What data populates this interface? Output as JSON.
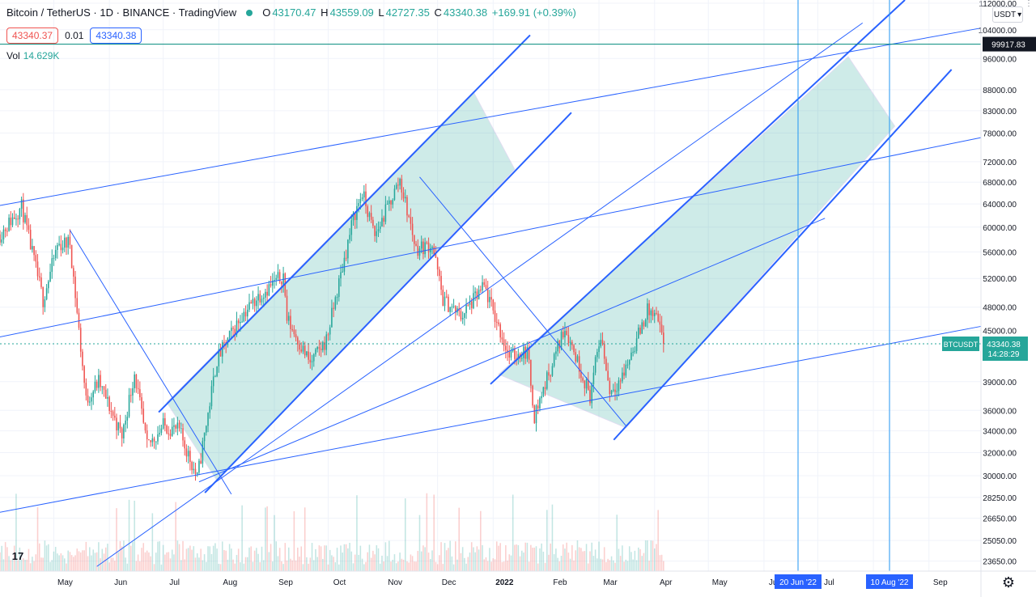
{
  "header": {
    "symbol": "Bitcoin / TetherUS · 1D · BINANCE · TradingView",
    "ohlc": [
      {
        "k": "O",
        "v": "43170.47"
      },
      {
        "k": "H",
        "v": "43559.09"
      },
      {
        "k": "L",
        "v": "42727.35"
      },
      {
        "k": "C",
        "v": "43340.38"
      }
    ],
    "change": "+169.91 (+0.39%)",
    "sell_price": "43340.37",
    "spread": "0.01",
    "buy_price": "43340.38",
    "vol_label": "Vol",
    "vol_value": "14.629K",
    "currency": "USDT",
    "tv_logo": "17"
  },
  "colors": {
    "up": "#26a69a",
    "down": "#ef5350",
    "lines": "#2962ff",
    "channel_fill": "#26a69a",
    "crosshair": "#00897b"
  },
  "icons": [
    "trading-view-logo",
    "settings-gear-icon",
    "more-dots-icon",
    "dropdown-chevron-icon"
  ],
  "chart_data": {
    "type": "candlestick",
    "title": "Bitcoin / TetherUS · 1D · BINANCE",
    "log_scale": true,
    "ylim": [
      23000,
      113000
    ],
    "yticks": [
      "112000.00",
      "104000.00",
      "96000.00",
      "88000.00",
      "83000.00",
      "78000.00",
      "72000.00",
      "68000.00",
      "64000.00",
      "60000.00",
      "56000.00",
      "52000.00",
      "48000.00",
      "45000.00",
      "39000.00",
      "36000.00",
      "34000.00",
      "32000.00",
      "30000.00",
      "28250.00",
      "26650.00",
      "25050.00",
      "23650.00"
    ],
    "xticks": [
      "May",
      "Jun",
      "Jul",
      "Aug",
      "Sep",
      "Oct",
      "Nov",
      "Dec",
      "2022",
      "Feb",
      "Mar",
      "Apr",
      "May",
      "Jun",
      "Jul",
      "Aug",
      "Sep"
    ],
    "x_start": "2021-04-01",
    "x_end": "2022-09-30",
    "last_price": 43340.38,
    "price_label": "43340.38",
    "price_countdown": "14:28:29",
    "symbol_tag": "BTCUSDT",
    "crosshair_price": 99917.83,
    "crosshair_label": "99917.83",
    "vertical_markers": [
      {
        "date": "2022-06-20",
        "label": "20 Jun '22"
      },
      {
        "date": "2022-08-10",
        "label": "10 Aug '22"
      }
    ],
    "price_path": [
      [
        "2021-04-01",
        58800
      ],
      [
        "2021-04-13",
        63500
      ],
      [
        "2021-04-25",
        49000
      ],
      [
        "2021-05-03",
        57000
      ],
      [
        "2021-05-10",
        57500
      ],
      [
        "2021-05-19",
        37000
      ],
      [
        "2021-05-26",
        39000
      ],
      [
        "2021-06-08",
        33500
      ],
      [
        "2021-06-15",
        40000
      ],
      [
        "2021-06-22",
        32500
      ],
      [
        "2021-07-01",
        34500
      ],
      [
        "2021-07-10",
        34000
      ],
      [
        "2021-07-20",
        29800
      ],
      [
        "2021-07-31",
        41500
      ],
      [
        "2021-08-14",
        47000
      ],
      [
        "2021-08-23",
        49500
      ],
      [
        "2021-09-06",
        52500
      ],
      [
        "2021-09-08",
        46500
      ],
      [
        "2021-09-21",
        41000
      ],
      [
        "2021-09-30",
        43800
      ],
      [
        "2021-10-15",
        61500
      ],
      [
        "2021-10-20",
        66000
      ],
      [
        "2021-10-27",
        58500
      ],
      [
        "2021-11-10",
        68500
      ],
      [
        "2021-11-19",
        56500
      ],
      [
        "2021-11-28",
        57200
      ],
      [
        "2021-12-04",
        49000
      ],
      [
        "2021-12-14",
        46800
      ],
      [
        "2021-12-27",
        50800
      ],
      [
        "2022-01-10",
        41800
      ],
      [
        "2022-01-20",
        42500
      ],
      [
        "2022-01-24",
        35500
      ],
      [
        "2022-02-10",
        45500
      ],
      [
        "2022-02-24",
        37500
      ],
      [
        "2022-03-02",
        44500
      ],
      [
        "2022-03-07",
        38000
      ],
      [
        "2022-03-14",
        39500
      ],
      [
        "2022-03-28",
        47500
      ],
      [
        "2022-04-02",
        46500
      ],
      [
        "2022-04-06",
        43340
      ]
    ],
    "drawings": [
      {
        "kind": "trendline",
        "from": [
          "2021-03-28",
          63500
        ],
        "to": [
          "2022-09-30",
          104500
        ]
      },
      {
        "kind": "trendline",
        "from": [
          "2021-03-28",
          44000
        ],
        "to": [
          "2022-09-30",
          77000
        ]
      },
      {
        "kind": "trendline",
        "from": [
          "2021-03-28",
          27000
        ],
        "to": [
          "2022-09-30",
          45500
        ]
      },
      {
        "kind": "trendline",
        "from": [
          "2021-05-10",
          59500
        ],
        "to": [
          "2021-08-08",
          28500
        ]
      },
      {
        "kind": "trendline",
        "from": [
          "2021-11-21",
          69000
        ],
        "to": [
          "2022-03-16",
          34500
        ]
      },
      {
        "kind": "trendline",
        "from": [
          "2021-05-25",
          23300
        ],
        "to": [
          "2022-07-26",
          106000
        ]
      },
      {
        "kind": "trendline",
        "from": [
          "2021-07-21",
          29500
        ],
        "to": [
          "2022-07-05",
          61500
        ]
      },
      {
        "kind": "channel",
        "fill": true,
        "p1": [
          "2021-07-03",
          36800
        ],
        "p2": [
          "2021-12-21",
          87500
        ],
        "p3": [
          "2021-07-31",
          29600
        ],
        "p4": [
          "2022-01-13",
          70500
        ]
      },
      {
        "kind": "channel",
        "fill": true,
        "p1": [
          "2022-01-04",
          39800
        ],
        "p2": [
          "2022-07-18",
          96500
        ],
        "p3": [
          "2022-03-16",
          34300
        ],
        "p4": [
          "2022-08-13",
          79500
        ]
      }
    ]
  }
}
